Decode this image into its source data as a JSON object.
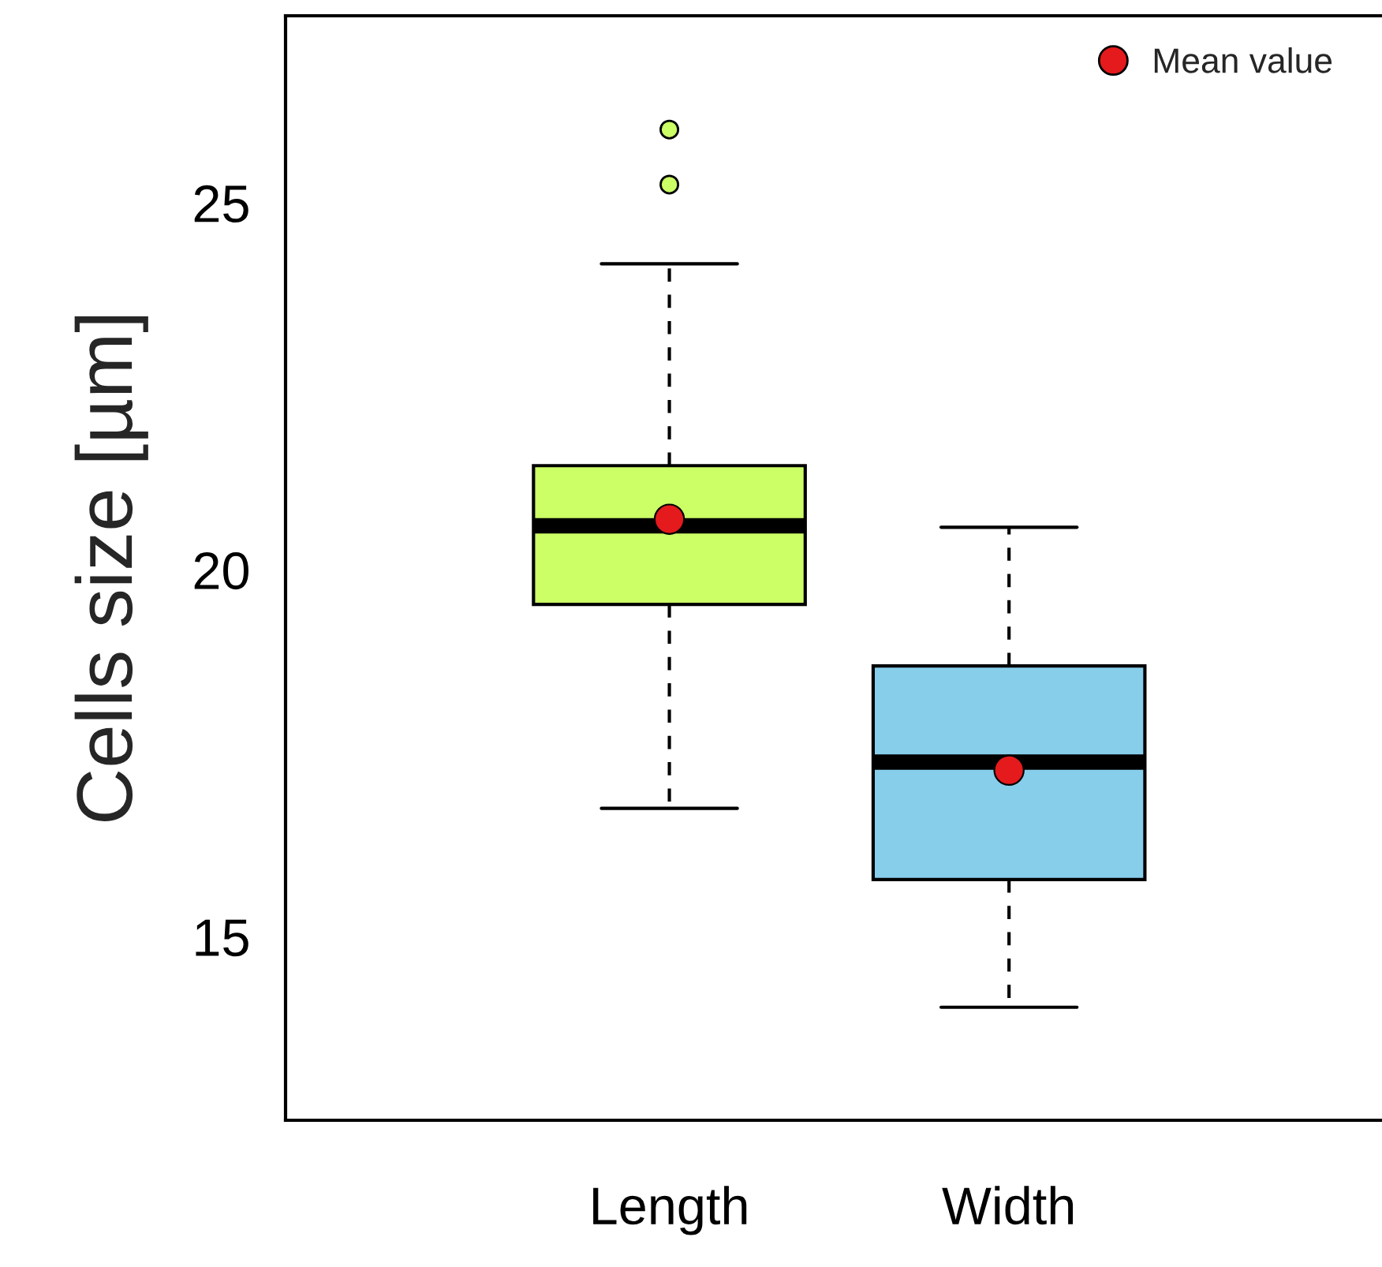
{
  "chart_data": {
    "type": "box",
    "ylabel": "Cells size [µm]",
    "categories": [
      "Length",
      "Width"
    ],
    "ylim": [
      12.5,
      27.55
    ],
    "yticks": [
      15,
      20,
      25
    ],
    "grid": false,
    "legend": "top right",
    "series": [
      {
        "colors": [
          "#ccff66",
          "#87ceeb"
        ],
        "boxes": [
          {
            "low": 16.75,
            "q1": 19.53,
            "median": 20.6,
            "q3": 21.42,
            "high": 24.17,
            "outliers": [
              25.25,
              26.0
            ]
          },
          {
            "low": 14.04,
            "q1": 15.78,
            "median": 17.38,
            "q3": 18.69,
            "high": 20.58
          }
        ]
      },
      {
        "type": "scatter",
        "name": "Mean value",
        "color": "#e41a1c",
        "x": [
          "Length",
          "Width"
        ],
        "values": [
          20.69,
          17.27
        ]
      }
    ]
  }
}
